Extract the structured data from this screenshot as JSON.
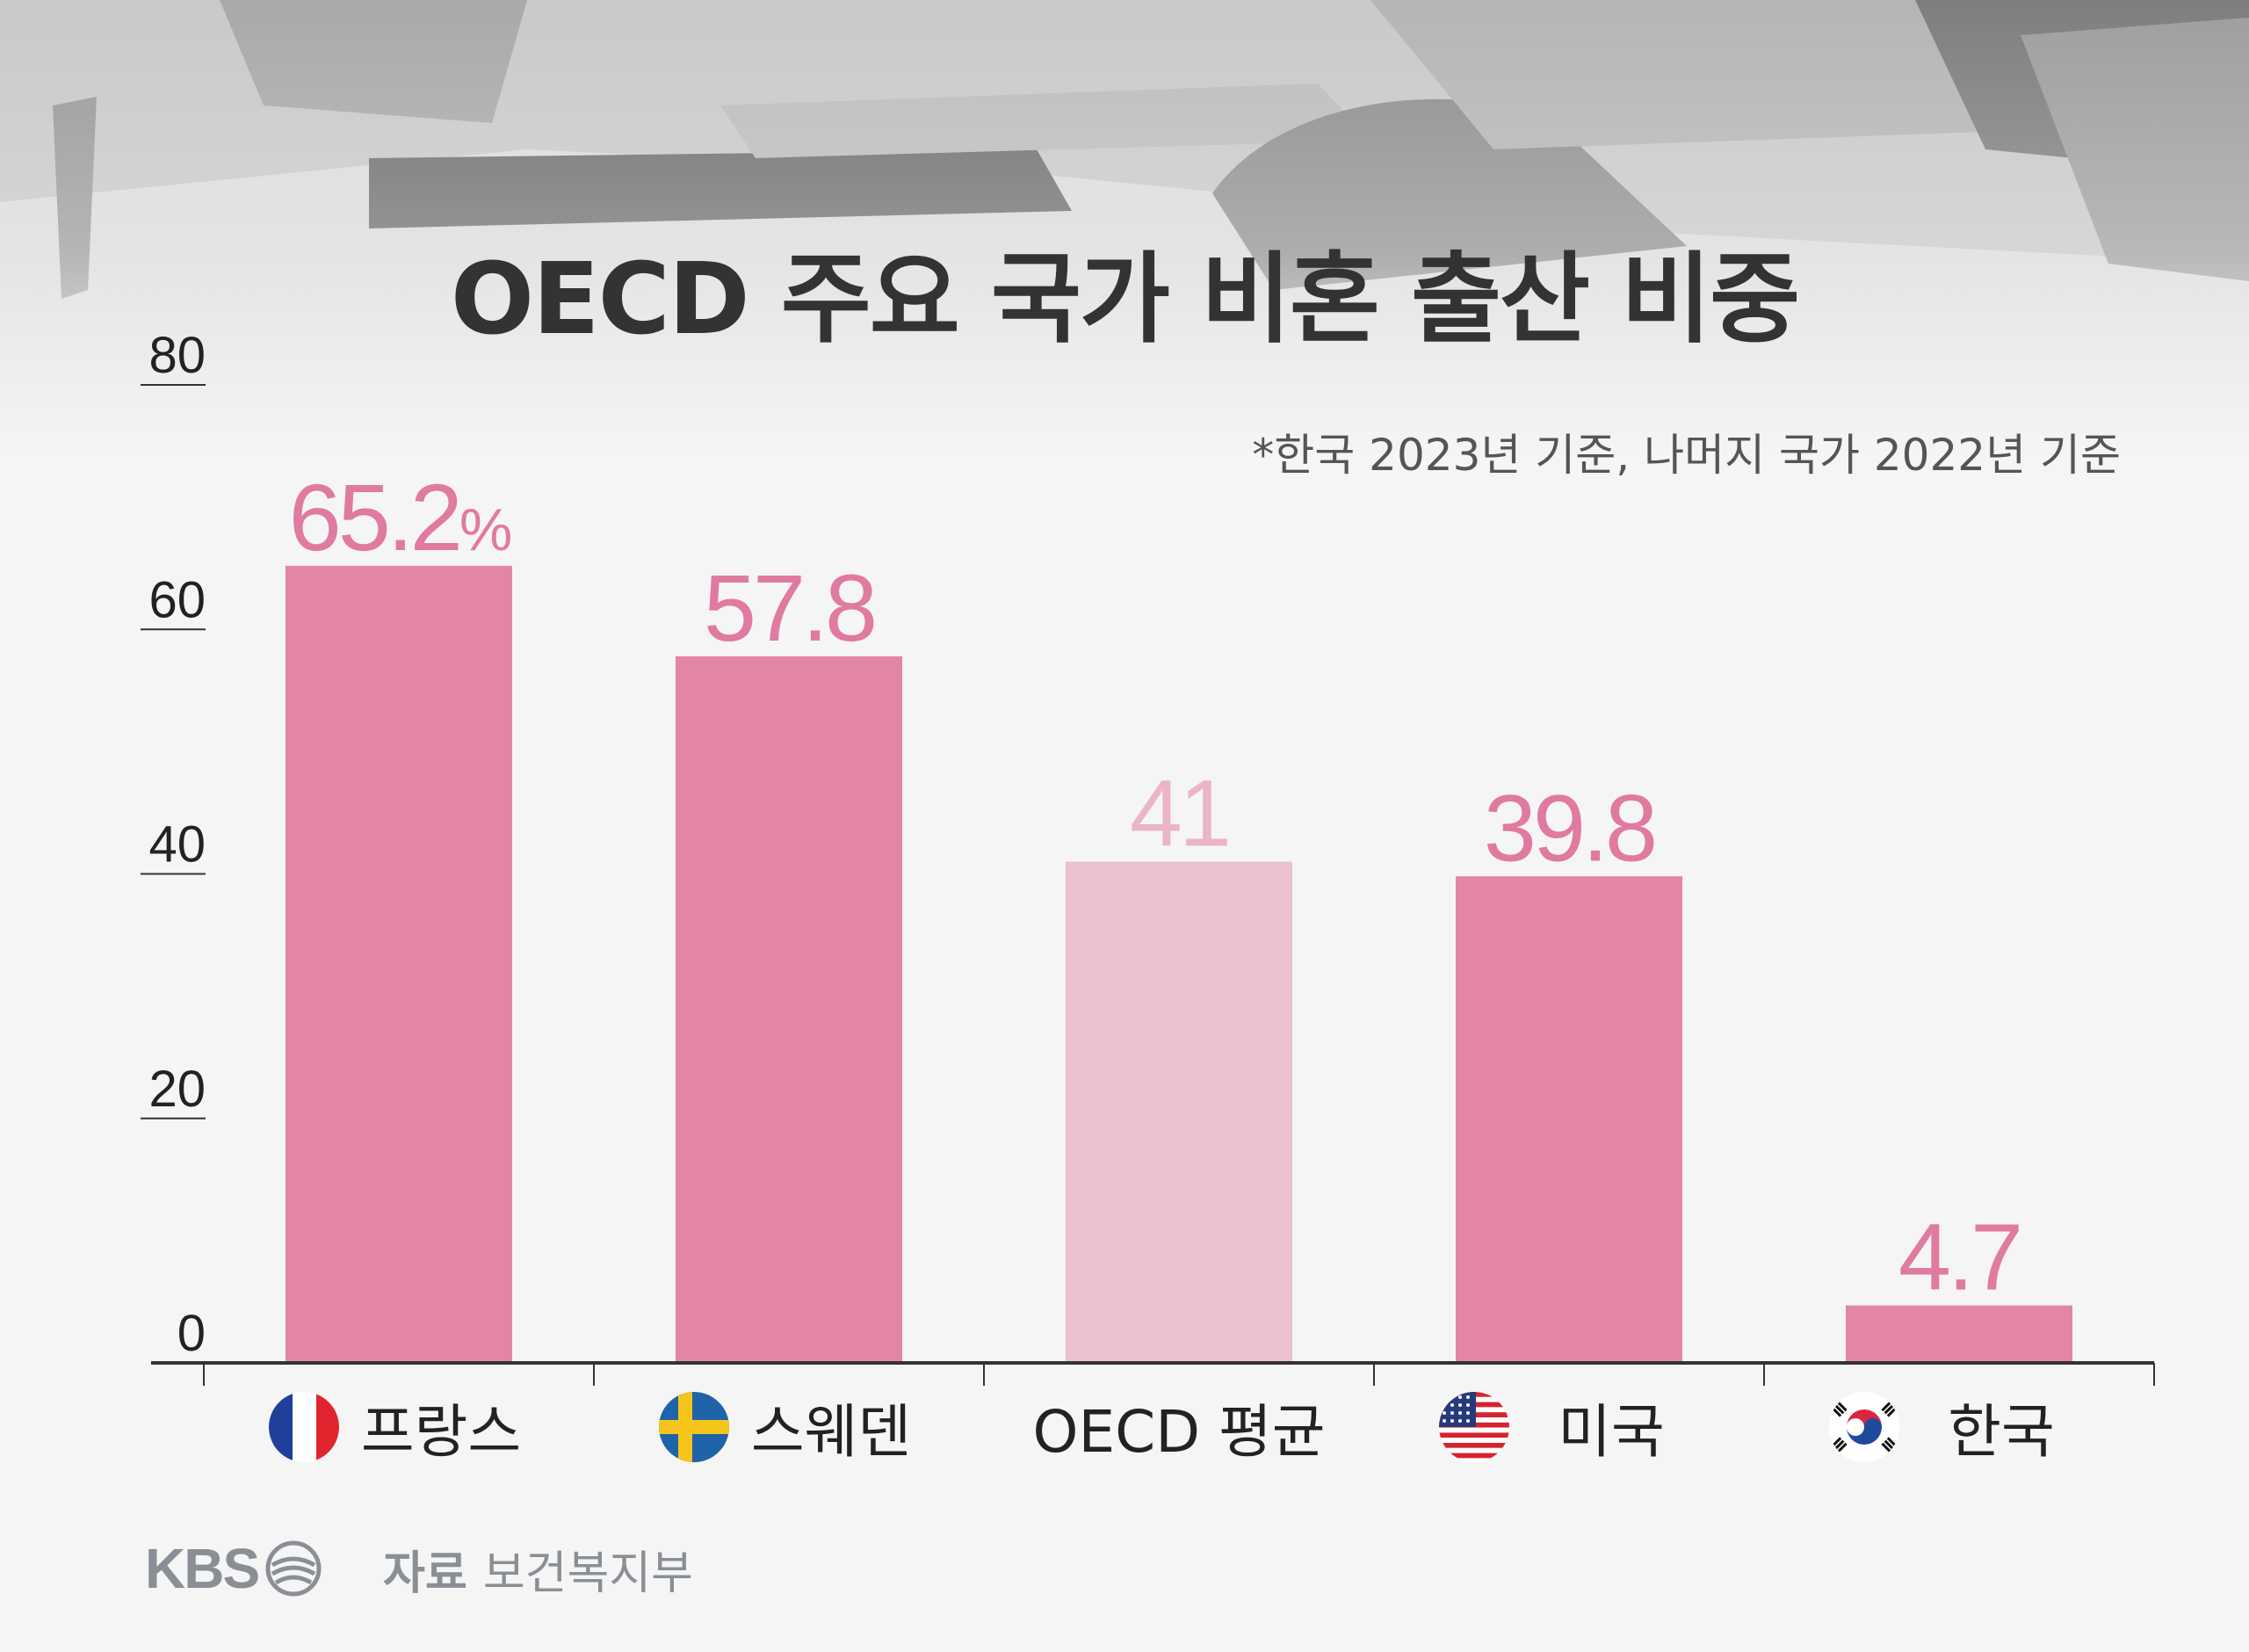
{
  "title": "OECD 주요 국가 비혼 출산 비중",
  "note": "*한국 2023년 기준, 나머지 국가 2022년 기준",
  "footer": {
    "logo": "KBS",
    "source_label": "자료",
    "source_value": "보건복지부"
  },
  "colors": {
    "bar": "#e385a6",
    "bar_highlight": "#ecc1cf",
    "label": "#e07aa0",
    "label_highlight": "#eab5c8",
    "axis": "#333333",
    "text": "#222222"
  },
  "chart_data": {
    "type": "bar",
    "title": "OECD 주요 국가 비혼 출산 비중",
    "ylim": [
      0,
      80
    ],
    "yticks": [
      0,
      20,
      40,
      60,
      80
    ],
    "grid": false,
    "categories": [
      "프랑스",
      "스웨덴",
      "OECD 평균",
      "미국",
      "한국"
    ],
    "flags": [
      "flag-france-icon",
      "flag-sweden-icon",
      "",
      "flag-usa-icon",
      "flag-korea-icon"
    ],
    "values": [
      65.2,
      57.8,
      41,
      39.8,
      4.7
    ],
    "value_labels": [
      "65.2",
      "57.8",
      "41",
      "39.8",
      "4.7"
    ],
    "unit_first": "%",
    "highlight_index": 2
  }
}
